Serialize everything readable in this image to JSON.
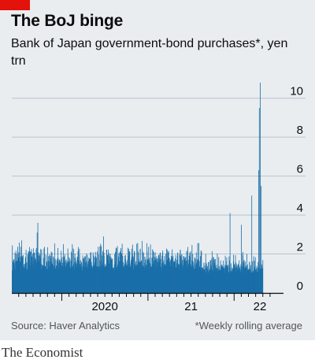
{
  "header": {
    "title": "The BoJ binge",
    "subtitle": "Bank of Japan government-bond purchases*, yen trn"
  },
  "footer": {
    "source": "Source: Haver Analytics",
    "footnote": "*Weekly rolling average",
    "brand": "The Economist"
  },
  "colors": {
    "bar": "#1a6fa8",
    "brand_red": "#e3120b",
    "gridline": "#b9c4cc",
    "background": "#e9edf0"
  },
  "chart_data": {
    "type": "bar",
    "ylim": [
      0,
      11
    ],
    "yticks": [
      0,
      2,
      4,
      6,
      8,
      10
    ],
    "xticks": [
      {
        "label": "2020",
        "t": 2020.0
      },
      {
        "label": "21",
        "t": 2021.0
      },
      {
        "label": "22",
        "t": 2022.0
      }
    ],
    "xlim": [
      2019.42,
      2022.5
    ],
    "grid": true,
    "tick_label_side": "right",
    "x_start": 2019.42,
    "x_step": 0.00274,
    "baseline_range": [
      0.6,
      2.8
    ],
    "spikes": [
      {
        "t": 2019.72,
        "y": 3.6
      },
      {
        "t": 2019.71,
        "y": 3.1
      },
      {
        "t": 2019.53,
        "y": 2.7
      },
      {
        "t": 2020.48,
        "y": 2.9
      },
      {
        "t": 2021.95,
        "y": 4.1
      },
      {
        "t": 2022.08,
        "y": 3.5
      },
      {
        "t": 2022.2,
        "y": 5.0
      },
      {
        "t": 2022.28,
        "y": 6.3
      },
      {
        "t": 2022.29,
        "y": 9.5
      },
      {
        "t": 2022.3,
        "y": 10.8
      },
      {
        "t": 2022.31,
        "y": 5.5
      }
    ]
  }
}
